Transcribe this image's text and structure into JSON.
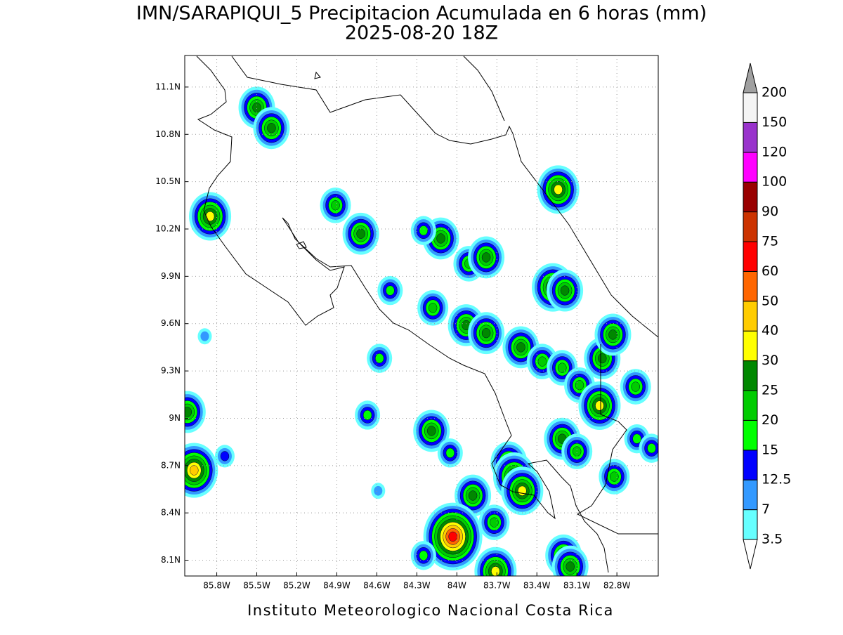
{
  "title": "IMN/SARAPIQUI_5 Precipitacion Acumulada en 6 horas (mm)",
  "subtitle": "2025-08-20 18Z",
  "footer": "Instituto Meteorologico Nacional Costa Rica",
  "map": {
    "lonlim": [
      -86.04,
      -82.49
    ],
    "latlim": [
      8.0,
      11.3
    ],
    "grid": true,
    "lonticks": [
      {
        "value": -85.8,
        "label": "85.8W"
      },
      {
        "value": -85.5,
        "label": "85.5W"
      },
      {
        "value": -85.2,
        "label": "85.2W"
      },
      {
        "value": -84.9,
        "label": "84.9W"
      },
      {
        "value": -84.6,
        "label": "84.6W"
      },
      {
        "value": -84.3,
        "label": "84.3W"
      },
      {
        "value": -84.0,
        "label": "84W"
      },
      {
        "value": -83.7,
        "label": "83.7W"
      },
      {
        "value": -83.4,
        "label": "83.4W"
      },
      {
        "value": -83.1,
        "label": "83.1W"
      },
      {
        "value": -82.8,
        "label": "82.8W"
      }
    ],
    "latticks": [
      {
        "value": 8.1,
        "label": "8.1N"
      },
      {
        "value": 8.4,
        "label": "8.4N"
      },
      {
        "value": 8.7,
        "label": "8.7N"
      },
      {
        "value": 9.0,
        "label": "9N"
      },
      {
        "value": 9.3,
        "label": "9.3N"
      },
      {
        "value": 9.6,
        "label": "9.6N"
      },
      {
        "value": 9.9,
        "label": "9.9N"
      },
      {
        "value": 10.2,
        "label": "10.2N"
      },
      {
        "value": 10.5,
        "label": "10.5N"
      },
      {
        "value": 10.8,
        "label": "10.8N"
      },
      {
        "value": 11.1,
        "label": "11.1N"
      }
    ]
  },
  "colorbar": {
    "levels": [
      3.5,
      7,
      12.5,
      15,
      20,
      25,
      30,
      40,
      50,
      60,
      75,
      90,
      100,
      120,
      150,
      200
    ],
    "colors": [
      "#ffffff",
      "#66ffff",
      "#3399ff",
      "#0000ff",
      "#00ff00",
      "#00cc00",
      "#008800",
      "#ffff00",
      "#ffcc00",
      "#ff6600",
      "#ff0000",
      "#cc3300",
      "#990000",
      "#ff00ff",
      "#9933cc",
      "#f4f4f4",
      "#a0a0a0"
    ]
  },
  "cells": [
    {
      "lon": -85.5,
      "lat": 10.97,
      "value": 25
    },
    {
      "lon": -85.39,
      "lat": 10.84,
      "value": 25
    },
    {
      "lon": -85.85,
      "lat": 10.28,
      "value": 30
    },
    {
      "lon": -84.91,
      "lat": 10.35,
      "value": 20
    },
    {
      "lon": -84.72,
      "lat": 10.17,
      "value": 25
    },
    {
      "lon": -84.12,
      "lat": 10.14,
      "value": 25
    },
    {
      "lon": -84.25,
      "lat": 10.19,
      "value": 15
    },
    {
      "lon": -83.91,
      "lat": 9.98,
      "value": 20
    },
    {
      "lon": -83.78,
      "lat": 10.02,
      "value": 25
    },
    {
      "lon": -83.24,
      "lat": 10.45,
      "value": 30
    },
    {
      "lon": -83.28,
      "lat": 9.83,
      "value": 30
    },
    {
      "lon": -83.19,
      "lat": 9.81,
      "value": 25
    },
    {
      "lon": -84.5,
      "lat": 9.81,
      "value": 15
    },
    {
      "lon": -84.18,
      "lat": 9.7,
      "value": 20
    },
    {
      "lon": -83.93,
      "lat": 9.59,
      "value": 25
    },
    {
      "lon": -83.78,
      "lat": 9.54,
      "value": 25
    },
    {
      "lon": -83.52,
      "lat": 9.45,
      "value": 25
    },
    {
      "lon": -84.58,
      "lat": 9.38,
      "value": 15
    },
    {
      "lon": -83.36,
      "lat": 9.36,
      "value": 20
    },
    {
      "lon": -83.21,
      "lat": 9.32,
      "value": 20
    },
    {
      "lon": -82.91,
      "lat": 9.38,
      "value": 25
    },
    {
      "lon": -82.83,
      "lat": 9.53,
      "value": 25
    },
    {
      "lon": -83.08,
      "lat": 9.21,
      "value": 20
    },
    {
      "lon": -82.93,
      "lat": 9.08,
      "value": 30
    },
    {
      "lon": -82.66,
      "lat": 9.2,
      "value": 20
    },
    {
      "lon": -84.67,
      "lat": 9.02,
      "value": 15
    },
    {
      "lon": -84.19,
      "lat": 8.92,
      "value": 25
    },
    {
      "lon": -84.05,
      "lat": 8.78,
      "value": 15
    },
    {
      "lon": -83.21,
      "lat": 8.87,
      "value": 25
    },
    {
      "lon": -83.1,
      "lat": 8.79,
      "value": 20
    },
    {
      "lon": -83.61,
      "lat": 8.72,
      "value": 25
    },
    {
      "lon": -83.57,
      "lat": 8.63,
      "value": 30
    },
    {
      "lon": -83.51,
      "lat": 8.54,
      "value": 30
    },
    {
      "lon": -83.88,
      "lat": 8.51,
      "value": 25
    },
    {
      "lon": -83.72,
      "lat": 8.34,
      "value": 20
    },
    {
      "lon": -84.03,
      "lat": 8.25,
      "value": 60
    },
    {
      "lon": -84.25,
      "lat": 8.13,
      "value": 15
    },
    {
      "lon": -83.2,
      "lat": 8.13,
      "value": 25
    },
    {
      "lon": -83.15,
      "lat": 8.06,
      "value": 25
    },
    {
      "lon": -83.71,
      "lat": 8.03,
      "value": 30
    },
    {
      "lon": -85.97,
      "lat": 8.67,
      "value": 40
    },
    {
      "lon": -86.02,
      "lat": 9.04,
      "value": 25
    },
    {
      "lon": -85.89,
      "lat": 9.52,
      "value": 7
    },
    {
      "lon": -84.59,
      "lat": 8.54,
      "value": 7
    },
    {
      "lon": -82.82,
      "lat": 8.63,
      "value": 20
    },
    {
      "lon": -82.65,
      "lat": 8.87,
      "value": 15
    },
    {
      "lon": -82.54,
      "lat": 8.81,
      "value": 15
    },
    {
      "lon": -85.74,
      "lat": 8.76,
      "value": 12.5
    }
  ]
}
